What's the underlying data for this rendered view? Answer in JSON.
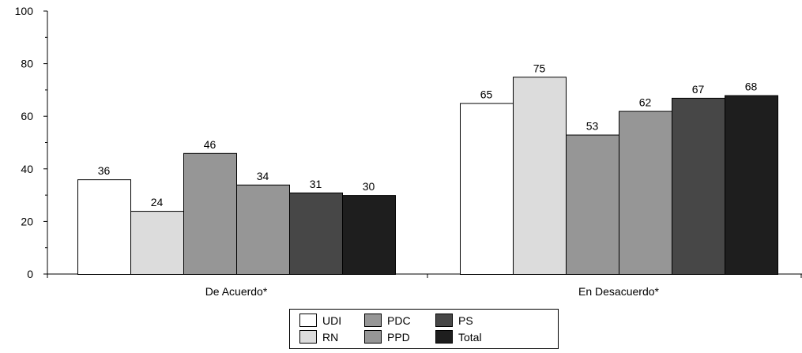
{
  "chart_data": {
    "type": "bar",
    "categories": [
      "De Acuerdo*",
      "En Desacuerdo*"
    ],
    "series": [
      {
        "name": "UDI",
        "values": [
          36,
          65
        ],
        "color": "#ffffff"
      },
      {
        "name": "RN",
        "values": [
          24,
          75
        ],
        "color": "#dcdcdc"
      },
      {
        "name": "PDC",
        "values": [
          46,
          53
        ],
        "color": "#969696"
      },
      {
        "name": "PPD",
        "values": [
          34,
          62
        ],
        "color": "#969696"
      },
      {
        "name": "PS",
        "values": [
          31,
          67
        ],
        "color": "#474747"
      },
      {
        "name": "Total",
        "values": [
          30,
          68
        ],
        "color": "#1e1e1e"
      }
    ],
    "ylim": [
      0,
      100
    ],
    "yticks": [
      0,
      20,
      40,
      60,
      80,
      100
    ],
    "grid": false,
    "legend_position": "bottom-center",
    "show_data_labels": true
  }
}
